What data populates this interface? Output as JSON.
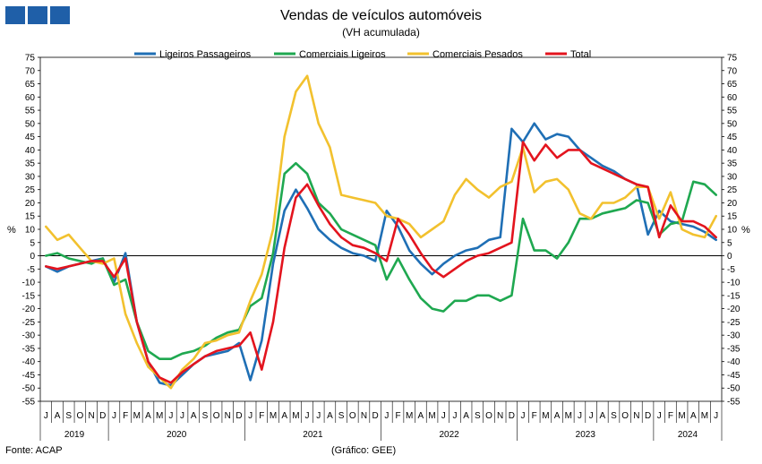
{
  "header": {
    "title": "Vendas de veículos automóveis",
    "subtitle": "(VH acumulada)"
  },
  "footer": {
    "source": "Fonte: ACAP",
    "credit": "(Gráfico: GEE)"
  },
  "chart_data": {
    "type": "line",
    "ylabel_left": "%",
    "ylabel_right": "%",
    "ylim": [
      -55,
      75
    ],
    "yticks": [
      -55,
      -50,
      -45,
      -40,
      -35,
      -30,
      -25,
      -20,
      -15,
      -10,
      -5,
      0,
      5,
      10,
      15,
      20,
      25,
      30,
      35,
      40,
      45,
      50,
      55,
      60,
      65,
      70,
      75
    ],
    "x_month_labels": [
      "J",
      "A",
      "S",
      "O",
      "N",
      "D",
      "J",
      "F",
      "M",
      "A",
      "M",
      "J",
      "J",
      "A",
      "S",
      "O",
      "N",
      "D",
      "J",
      "F",
      "M",
      "A",
      "M",
      "J",
      "J",
      "A",
      "S",
      "O",
      "N",
      "D",
      "J",
      "F",
      "M",
      "A",
      "M",
      "J",
      "J",
      "A",
      "S",
      "O",
      "N",
      "D",
      "J",
      "F",
      "M",
      "A",
      "M",
      "J",
      "J",
      "A",
      "S",
      "O",
      "N",
      "D",
      "J",
      "F",
      "M",
      "A",
      "M",
      "J"
    ],
    "years": [
      {
        "label": "2019",
        "months": 6
      },
      {
        "label": "2020",
        "months": 12
      },
      {
        "label": "2021",
        "months": 12
      },
      {
        "label": "2022",
        "months": 12
      },
      {
        "label": "2023",
        "months": 12
      },
      {
        "label": "2024",
        "months": 6
      }
    ],
    "series": [
      {
        "name": "Ligeiros Passageiros",
        "color": "#1f6fb5",
        "values": [
          -4,
          -6,
          -4,
          -3,
          -2,
          -1,
          -10,
          1,
          -25,
          -40,
          -48,
          -49,
          -45,
          -41,
          -38,
          -37,
          -36,
          -33,
          -47,
          -32,
          -3,
          17,
          25,
          18,
          10,
          6,
          3,
          1,
          0,
          -2,
          17,
          11,
          2,
          -3,
          -7,
          -3,
          0,
          2,
          3,
          6,
          7,
          48,
          43,
          50,
          44,
          46,
          45,
          40,
          37,
          34,
          32,
          29,
          27,
          8,
          17,
          13,
          12,
          11,
          9,
          6
        ]
      },
      {
        "name": "Comerciais Ligeiros",
        "color": "#1fa850",
        "values": [
          0,
          1,
          -1,
          -2,
          -3,
          -1,
          -11,
          -9,
          -25,
          -36,
          -39,
          -39,
          -37,
          -36,
          -34,
          -31,
          -29,
          -28,
          -19,
          -16,
          1,
          31,
          35,
          31,
          20,
          16,
          10,
          8,
          6,
          4,
          -9,
          -1,
          -9,
          -16,
          -20,
          -21,
          -17,
          -17,
          -15,
          -15,
          -17,
          -15,
          14,
          2,
          2,
          -1,
          5,
          14,
          14,
          16,
          17,
          18,
          21,
          20,
          8,
          12,
          13,
          28,
          27,
          23
        ]
      },
      {
        "name": "Comerciais Pesados",
        "color": "#f2c12e",
        "values": [
          11,
          6,
          8,
          3,
          -2,
          -3,
          -1,
          -22,
          -33,
          -42,
          -46,
          -50,
          -43,
          -39,
          -33,
          -32,
          -30,
          -29,
          -17,
          -7,
          10,
          45,
          62,
          68,
          50,
          41,
          23,
          22,
          21,
          20,
          15,
          14,
          12,
          7,
          10,
          13,
          23,
          29,
          25,
          22,
          26,
          28,
          41,
          24,
          28,
          29,
          25,
          16,
          14,
          20,
          20,
          22,
          26,
          26,
          14,
          24,
          10,
          8,
          7,
          15
        ]
      },
      {
        "name": "Total",
        "color": "#e3141e",
        "values": [
          -4,
          -5,
          -4,
          -3,
          -2,
          -2,
          -8,
          -1,
          -25,
          -40,
          -46,
          -48,
          -44,
          -41,
          -38,
          -36,
          -35,
          -34,
          -29,
          -43,
          -25,
          3,
          22,
          27,
          19,
          12,
          7,
          4,
          3,
          1,
          -2,
          14,
          8,
          1,
          -5,
          -8,
          -5,
          -2,
          0,
          1,
          3,
          5,
          43,
          36,
          42,
          37,
          40,
          40,
          35,
          33,
          31,
          29,
          27,
          26,
          7,
          19,
          13,
          13,
          11,
          7
        ]
      }
    ]
  }
}
